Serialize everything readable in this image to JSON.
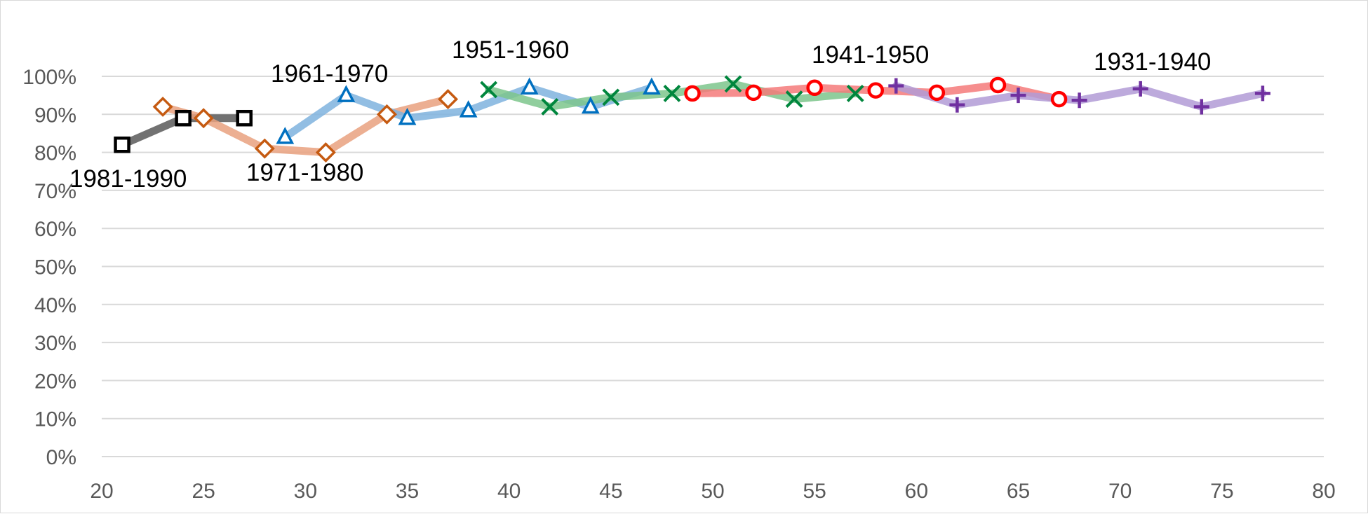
{
  "chart_data": {
    "type": "line",
    "title": "",
    "xlabel": "",
    "ylabel": "",
    "xlim": [
      20,
      80
    ],
    "ylim": [
      0,
      1
    ],
    "x_ticks": [
      "20",
      "25",
      "30",
      "35",
      "40",
      "45",
      "50",
      "55",
      "60",
      "65",
      "70",
      "75",
      "80"
    ],
    "y_ticks": [
      "0%",
      "10%",
      "20%",
      "30%",
      "40%",
      "50%",
      "60%",
      "70%",
      "80%",
      "90%",
      "100%"
    ],
    "grid": "horizontal",
    "legend": "none",
    "series": [
      {
        "name": "1981-1990",
        "color": "#595959",
        "marker_color": "#000000",
        "marker": "square",
        "x": [
          21,
          24,
          27
        ],
        "y": [
          0.82,
          0.89,
          0.89
        ]
      },
      {
        "name": "1971-1980",
        "color": "#e9a17f",
        "marker_color": "#c55a11",
        "marker": "diamond",
        "x": [
          23,
          25,
          28,
          31,
          34,
          37
        ],
        "y": [
          0.92,
          0.89,
          0.81,
          0.8,
          0.9,
          0.94
        ]
      },
      {
        "name": "1961-1970",
        "color": "#7fb3de",
        "marker_color": "#0070c0",
        "marker": "triangle",
        "x": [
          29,
          32,
          35,
          38,
          41,
          44,
          47
        ],
        "y": [
          0.84,
          0.95,
          0.89,
          0.91,
          0.97,
          0.92,
          0.97
        ]
      },
      {
        "name": "1951-1960",
        "color": "#7cc58c",
        "marker_color": "#00863d",
        "marker": "x",
        "x": [
          39,
          42,
          45,
          48,
          51,
          54,
          57
        ],
        "y": [
          0.965,
          0.92,
          0.945,
          0.955,
          0.98,
          0.94,
          0.955
        ]
      },
      {
        "name": "1941-1950",
        "color": "#f47a7a",
        "marker_color": "#ff0000",
        "marker": "circle",
        "x": [
          49,
          52,
          55,
          58,
          61,
          64,
          67
        ],
        "y": [
          0.955,
          0.957,
          0.97,
          0.963,
          0.957,
          0.977,
          0.94
        ]
      },
      {
        "name": "1931-1940",
        "color": "#b19bd6",
        "marker_color": "#7030a0",
        "marker": "plus",
        "x": [
          59,
          62,
          65,
          68,
          71,
          74,
          77
        ],
        "y": [
          0.975,
          0.925,
          0.95,
          0.937,
          0.967,
          0.92,
          0.955
        ]
      }
    ]
  }
}
